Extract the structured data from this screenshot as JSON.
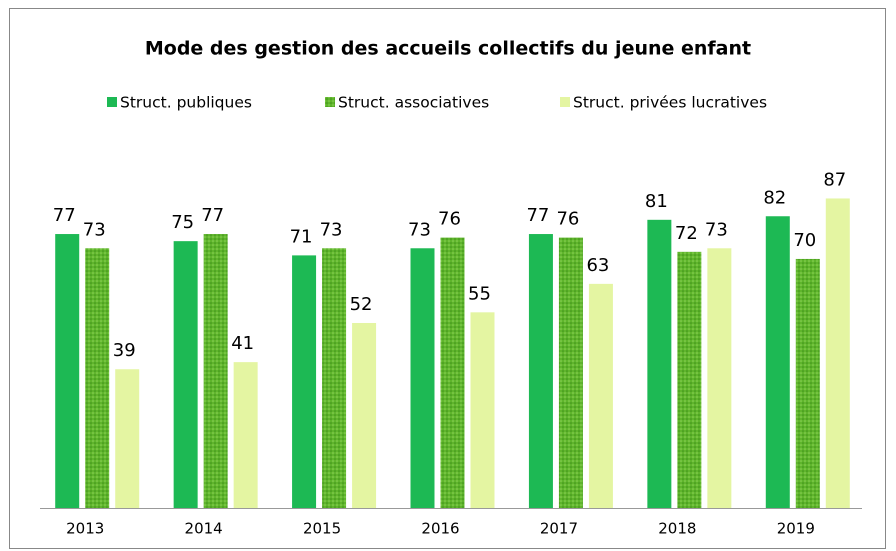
{
  "chart_data": {
    "type": "bar",
    "title": "Mode des gestion des accueils collectifs du jeune enfant",
    "categories": [
      "2013",
      "2014",
      "2015",
      "2016",
      "2017",
      "2018",
      "2019"
    ],
    "series": [
      {
        "name": "Struct. publiques",
        "color": "#1db954",
        "values": [
          77,
          75,
          71,
          73,
          77,
          81,
          82
        ]
      },
      {
        "name": "Struct. associatives",
        "color": "#5fb52c",
        "pattern": "dots",
        "values": [
          73,
          77,
          73,
          76,
          76,
          72,
          70
        ]
      },
      {
        "name": "Struct. privées lucratives",
        "color": "#e4f5a2",
        "values": [
          39,
          41,
          52,
          55,
          63,
          73,
          87
        ]
      }
    ],
    "ylim": [
      0,
      95
    ],
    "legend": "top",
    "grid": false
  }
}
